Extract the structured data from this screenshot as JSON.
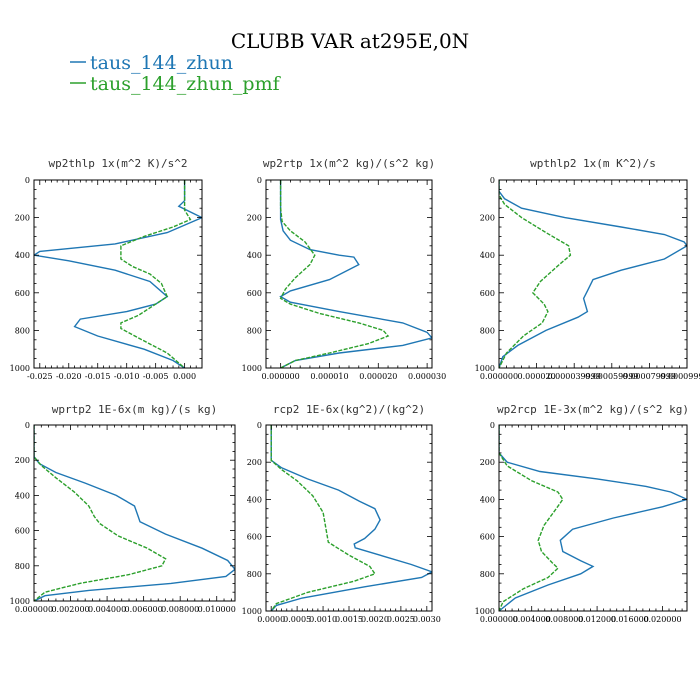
{
  "figure": {
    "title": "CLUBB VAR at295E,0N",
    "legend": [
      {
        "label": "taus_144_zhun",
        "color": "#1f77b4"
      },
      {
        "label": "taus_144_zhun_pmf",
        "color": "#2ca02c"
      }
    ]
  },
  "chart_data": [
    {
      "type": "line",
      "title": "wp2thlp  1x(m^2 K)/s^2",
      "xlim": [
        -0.026,
        0.003
      ],
      "ylim": [
        1000,
        0
      ],
      "yticks": [
        0,
        200,
        400,
        600,
        800,
        1000
      ],
      "xticks": [
        -0.025,
        -0.02,
        -0.015,
        -0.01,
        -0.005,
        0.0
      ],
      "xtick_labels": [
        "-0.025",
        "-0.020",
        "-0.015",
        "-0.010",
        "-0.005",
        "0.000"
      ],
      "series": [
        {
          "name": "taus_144_zhun",
          "color": "#1f77b4",
          "x": [
            0.0,
            0.0,
            -0.001,
            0.003,
            -0.003,
            -0.012,
            -0.025,
            -0.026,
            -0.02,
            -0.012,
            -0.006,
            -0.003,
            -0.005,
            -0.01,
            -0.018,
            -0.019,
            -0.015,
            -0.007,
            -0.002,
            0.0
          ],
          "y": [
            0,
            110,
            140,
            200,
            280,
            340,
            380,
            400,
            430,
            480,
            540,
            620,
            660,
            700,
            740,
            780,
            830,
            900,
            960,
            1000
          ]
        },
        {
          "name": "taus_144_zhun_pmf",
          "color": "#2ca02c",
          "x": [
            0.0,
            0.0,
            0.0,
            0.001,
            -0.002,
            -0.007,
            -0.011,
            -0.011,
            -0.009,
            -0.006,
            -0.004,
            -0.003,
            -0.005,
            -0.008,
            -0.011,
            -0.011,
            -0.008,
            -0.003,
            0.0
          ],
          "y": [
            0,
            110,
            160,
            210,
            250,
            300,
            350,
            420,
            460,
            500,
            550,
            620,
            660,
            720,
            760,
            790,
            840,
            920,
            1000
          ]
        }
      ]
    },
    {
      "type": "line",
      "title": "wp2rtp  1x(m^2 kg)/(s^2 kg)",
      "xlim": [
        -3e-06,
        3.1e-05
      ],
      "ylim": [
        1000,
        0
      ],
      "yticks": [
        0,
        200,
        400,
        600,
        800,
        1000
      ],
      "xticks": [
        0.0,
        1e-05,
        2e-05,
        3e-05
      ],
      "xtick_labels": [
        "0.000000",
        "0.000010",
        "0.000020",
        "0.000030"
      ],
      "series": [
        {
          "name": "taus_144_zhun",
          "color": "#1f77b4",
          "x": [
            0.0,
            0.0,
            0.0,
            5e-07,
            2e-06,
            6e-06,
            1.2e-05,
            1.5e-05,
            1.6e-05,
            1e-05,
            2e-06,
            0.0,
            2e-06,
            1.2e-05,
            2.5e-05,
            3e-05,
            3.1e-05,
            2.5e-05,
            1.2e-05,
            3e-06,
            0.0
          ],
          "y": [
            0,
            150,
            210,
            270,
            320,
            370,
            400,
            410,
            450,
            530,
            590,
            620,
            650,
            700,
            760,
            810,
            840,
            880,
            920,
            960,
            1000
          ]
        },
        {
          "name": "taus_144_zhun_pmf",
          "color": "#2ca02c",
          "x": [
            0.0,
            0.0,
            3e-07,
            2e-06,
            5e-06,
            7e-06,
            6e-06,
            3e-06,
            1e-06,
            0.0,
            2e-06,
            8e-06,
            1.6e-05,
            2.1e-05,
            2.2e-05,
            1.8e-05,
            1e-05,
            3e-06,
            0.0
          ],
          "y": [
            0,
            150,
            220,
            270,
            330,
            400,
            450,
            520,
            580,
            630,
            660,
            710,
            760,
            800,
            830,
            870,
            920,
            960,
            1000
          ]
        }
      ]
    },
    {
      "type": "line",
      "title": "wpthlp2  1x(m K^2)/s",
      "xlim": [
        0.0,
        0.0001
      ],
      "ylim": [
        1000,
        0
      ],
      "yticks": [
        0,
        200,
        400,
        600,
        800,
        1000
      ],
      "xticks": [
        0.0,
        2e-05,
        4e-05,
        6e-05,
        8e-05,
        0.0001
      ],
      "xtick_labels": [
        "0.000000",
        "0.000020",
        "0.000039999",
        "0.000059999",
        "0.000079999",
        "0.000099999"
      ],
      "series": [
        {
          "name": "taus_144_zhun",
          "color": "#1f77b4",
          "x": [
            0.0,
            0.0,
            3e-06,
            1.2e-05,
            3.5e-05,
            6.5e-05,
            8.8e-05,
            9.85e-05,
            0.0001,
            8.8e-05,
            6.5e-05,
            5e-05,
            4.7e-05,
            4.5e-05,
            4.7e-05,
            4.2e-05,
            2.5e-05,
            1e-05,
            2e-06,
            0.0
          ],
          "y": [
            0,
            60,
            100,
            150,
            200,
            250,
            290,
            330,
            350,
            420,
            480,
            530,
            590,
            630,
            700,
            730,
            800,
            880,
            940,
            1000
          ]
        },
        {
          "name": "taus_144_zhun_pmf",
          "color": "#2ca02c",
          "x": [
            0.0,
            0.0,
            3e-06,
            1.2e-05,
            2.5e-05,
            3.7e-05,
            3.8e-05,
            3.2e-05,
            2.2e-05,
            1.8e-05,
            2.4e-05,
            2.6e-05,
            2.3e-05,
            1.3e-05,
            4e-06,
            0.0
          ],
          "y": [
            0,
            80,
            130,
            200,
            280,
            350,
            400,
            450,
            540,
            600,
            660,
            700,
            760,
            830,
            920,
            1000
          ]
        }
      ]
    },
    {
      "type": "line",
      "title": "wprtp2  1E-6x(m kg)/(s kg)",
      "xlim": [
        0.0,
        0.011
      ],
      "ylim": [
        1000,
        0
      ],
      "yticks": [
        0,
        200,
        400,
        600,
        800,
        1000
      ],
      "xticks": [
        0.0,
        0.002,
        0.004,
        0.006,
        0.008,
        0.01
      ],
      "xtick_labels": [
        "0.000000",
        "0.002000",
        "0.004000",
        "0.006000",
        "0.008000",
        "0.010000"
      ],
      "series": [
        {
          "name": "taus_144_zhun",
          "color": "#1f77b4",
          "x": [
            0.0,
            0.0,
            0.0003,
            0.0012,
            0.0028,
            0.0045,
            0.0055,
            0.0057,
            0.0058,
            0.0072,
            0.0092,
            0.0106,
            0.011,
            0.0105,
            0.0075,
            0.003,
            0.0006,
            0.0
          ],
          "y": [
            0,
            180,
            220,
            270,
            330,
            400,
            460,
            520,
            550,
            620,
            700,
            770,
            820,
            860,
            900,
            940,
            970,
            1000
          ]
        },
        {
          "name": "taus_144_zhun_pmf",
          "color": "#2ca02c",
          "x": [
            0.0,
            0.0,
            0.0004,
            0.0012,
            0.0022,
            0.003,
            0.0033,
            0.0036,
            0.0046,
            0.0062,
            0.0072,
            0.007,
            0.0052,
            0.0025,
            0.0006,
            0.0
          ],
          "y": [
            0,
            180,
            230,
            300,
            380,
            460,
            520,
            560,
            630,
            700,
            760,
            800,
            850,
            900,
            950,
            1000
          ]
        }
      ]
    },
    {
      "type": "line",
      "title": "rcp2  1E-6x(kg^2)/(kg^2)",
      "xlim": [
        -0.0001,
        0.0031
      ],
      "ylim": [
        1000,
        0
      ],
      "yticks": [
        0,
        200,
        400,
        600,
        800,
        1000
      ],
      "xticks": [
        0.0,
        0.0005,
        0.001,
        0.0015,
        0.002,
        0.0025,
        0.003
      ],
      "xtick_labels": [
        "0.0000",
        "0.0005",
        "0.0010",
        "0.0015",
        "0.0020",
        "0.0025",
        "0.0030"
      ],
      "series": [
        {
          "name": "taus_144_zhun",
          "color": "#1f77b4",
          "x": [
            0.0,
            0.0,
            0.0002,
            0.0007,
            0.0013,
            0.0017,
            0.002,
            0.0021,
            0.002,
            0.0018,
            0.0016,
            0.00162,
            0.0021,
            0.0027,
            0.0031,
            0.0029,
            0.0018,
            0.0006,
            0.0001,
            0.0
          ],
          "y": [
            0,
            190,
            230,
            290,
            350,
            410,
            450,
            510,
            560,
            610,
            640,
            660,
            700,
            750,
            790,
            820,
            870,
            930,
            970,
            1000
          ]
        },
        {
          "name": "taus_144_zhun_pmf",
          "color": "#2ca02c",
          "x": [
            0.0,
            0.0,
            0.0002,
            0.0005,
            0.0008,
            0.001,
            0.00105,
            0.0011,
            0.0015,
            0.0019,
            0.002,
            0.0016,
            0.0007,
            0.0001,
            0.0
          ],
          "y": [
            0,
            190,
            240,
            300,
            380,
            470,
            550,
            630,
            700,
            760,
            800,
            840,
            900,
            960,
            1000
          ]
        }
      ]
    },
    {
      "type": "line",
      "title": "wp2rcp  1E-3x(m^2 kg)/(s^2 kg)",
      "xlim": [
        0.0,
        0.023
      ],
      "ylim": [
        1000,
        0
      ],
      "yticks": [
        0,
        200,
        400,
        600,
        800,
        1000
      ],
      "xticks": [
        0.0,
        0.004,
        0.008,
        0.012,
        0.016,
        0.02
      ],
      "xtick_labels": [
        "0.000000",
        "0.004000",
        "0.008000",
        "0.012000",
        "0.016000",
        "0.020000"
      ],
      "series": [
        {
          "name": "taus_144_zhun",
          "color": "#1f77b4",
          "x": [
            0.0,
            0.0,
            0.001,
            0.005,
            0.012,
            0.018,
            0.021,
            0.023,
            0.02,
            0.014,
            0.009,
            0.0075,
            0.0078,
            0.01,
            0.0115,
            0.01,
            0.006,
            0.002,
            0.0
          ],
          "y": [
            0,
            150,
            200,
            250,
            290,
            330,
            360,
            400,
            440,
            500,
            560,
            620,
            680,
            730,
            760,
            800,
            860,
            930,
            1000
          ]
        },
        {
          "name": "taus_144_zhun_pmf",
          "color": "#2ca02c",
          "x": [
            0.0,
            0.0,
            0.001,
            0.004,
            0.0072,
            0.0078,
            0.007,
            0.0055,
            0.0048,
            0.0052,
            0.0065,
            0.0072,
            0.006,
            0.003,
            0.0005,
            0.0
          ],
          "y": [
            0,
            150,
            220,
            300,
            360,
            400,
            450,
            540,
            620,
            680,
            740,
            770,
            820,
            880,
            950,
            1000
          ]
        }
      ]
    }
  ]
}
